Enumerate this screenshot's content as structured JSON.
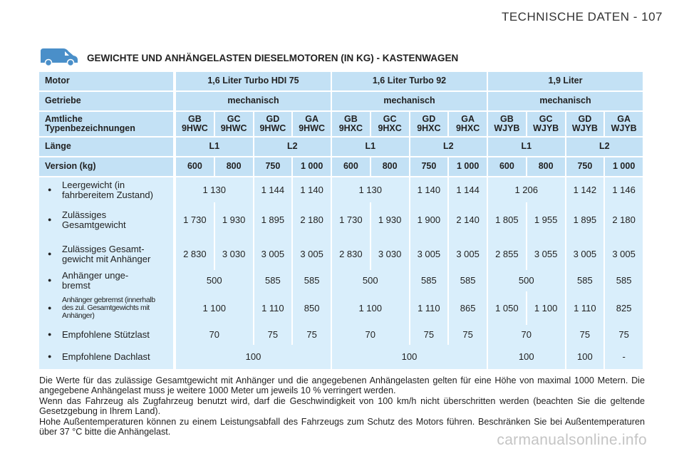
{
  "header": {
    "title": "TECHNISCHE DATEN - 107"
  },
  "section_title": "GEWICHTE UND ANHÄNGELASTEN DIESELMOTOREN (IN KG) - KASTENWAGEN",
  "table": {
    "header_rows": [
      {
        "label": "Motor",
        "cells": [
          "1,6 Liter Turbo HDI 75",
          "1,6 Liter Turbo 92",
          "1,9 Liter"
        ]
      },
      {
        "label": "Getriebe",
        "cells": [
          "mechanisch",
          "mechanisch",
          "mechanisch"
        ]
      },
      {
        "label": "Amtliche\nTypenbezeichnungen",
        "cells": [
          "GB\n9HWC",
          "GC\n9HWC",
          "GD\n9HWC",
          "GA\n9HWC",
          "GB\n9HXC",
          "GC\n9HXC",
          "GD\n9HXC",
          "GA\n9HXC",
          "GB\nWJYB",
          "GC\nWJYB",
          "GD\nWJYB",
          "GA\nWJYB"
        ]
      },
      {
        "label": "Länge",
        "cells": [
          "L1",
          "L2",
          "L1",
          "L2",
          "L1",
          "L2"
        ]
      },
      {
        "label": "Version (kg)",
        "cells": [
          "600",
          "800",
          "750",
          "1 000",
          "600",
          "800",
          "750",
          "1 000",
          "600",
          "800",
          "750",
          "1 000"
        ]
      }
    ],
    "data_rows": [
      {
        "label": "Leergewicht (in\nfahrbereitem Zustand)",
        "cells": [
          "1 130",
          "1 144",
          "1 140",
          "1 130",
          "1 140",
          "1 144",
          "1 206",
          "1 142",
          "1 146"
        ]
      },
      {
        "label": "Zulässiges\nGesamtgewicht",
        "cells": [
          "1 730",
          "1 930",
          "1 895",
          "2 180",
          "1 730",
          "1 930",
          "1 900",
          "2 140",
          "1 805",
          "1 955",
          "1 895",
          "2 180"
        ]
      },
      {
        "label": "Zulässiges Gesamt-\ngewicht mit Anhänger",
        "cells": [
          "2 830",
          "3 030",
          "3 005",
          "3 005",
          "2 830",
          "3 030",
          "3 005",
          "3 005",
          "2 855",
          "3 055",
          "3 005",
          "3 005"
        ]
      },
      {
        "label": "Anhänger unge-\nbremst",
        "cells": [
          "500",
          "585",
          "585",
          "500",
          "585",
          "585",
          "500",
          "585",
          "585"
        ]
      },
      {
        "label": "Anhänger gebremst (innerhalb\ndes zul. Gesamtgewichts mit\nAnhänger)",
        "cells": [
          "1 100",
          "1 110",
          "850",
          "1 100",
          "1 110",
          "865",
          "1 050",
          "1 100",
          "1 110",
          "825"
        ]
      },
      {
        "label": "Empfohlene Stützlast",
        "cells": [
          "70",
          "75",
          "75",
          "70",
          "75",
          "75",
          "70",
          "75",
          "75"
        ]
      },
      {
        "label": "Empfohlene Dachlast",
        "cells": [
          "100",
          "100",
          "100",
          "100",
          "-"
        ]
      }
    ]
  },
  "notes": [
    "Die Werte für das zulässige Gesamtgewicht mit Anhänger und die angegebenen Anhängelasten gelten für eine Höhe von maximal 1000 Metern. Die angegebene Anhängelast muss je weitere 1000 Meter um jeweils 10 % verringert werden.",
    "Wenn das Fahrzeug als Zugfahrzeug benutzt wird, darf die Geschwindigkeit von 100 km/h nicht überschritten werden (beachten Sie die geltende Gesetzgebung in Ihrem Land).",
    "Hohe Außentemperaturen können zu einem Leistungsabfall des Fahrzeugs zum Schutz des Motors führen. Beschränken Sie bei Außentemperaturen über 37 °C bitte die Anhängelast."
  ],
  "watermark": "carmanualsonline.info"
}
